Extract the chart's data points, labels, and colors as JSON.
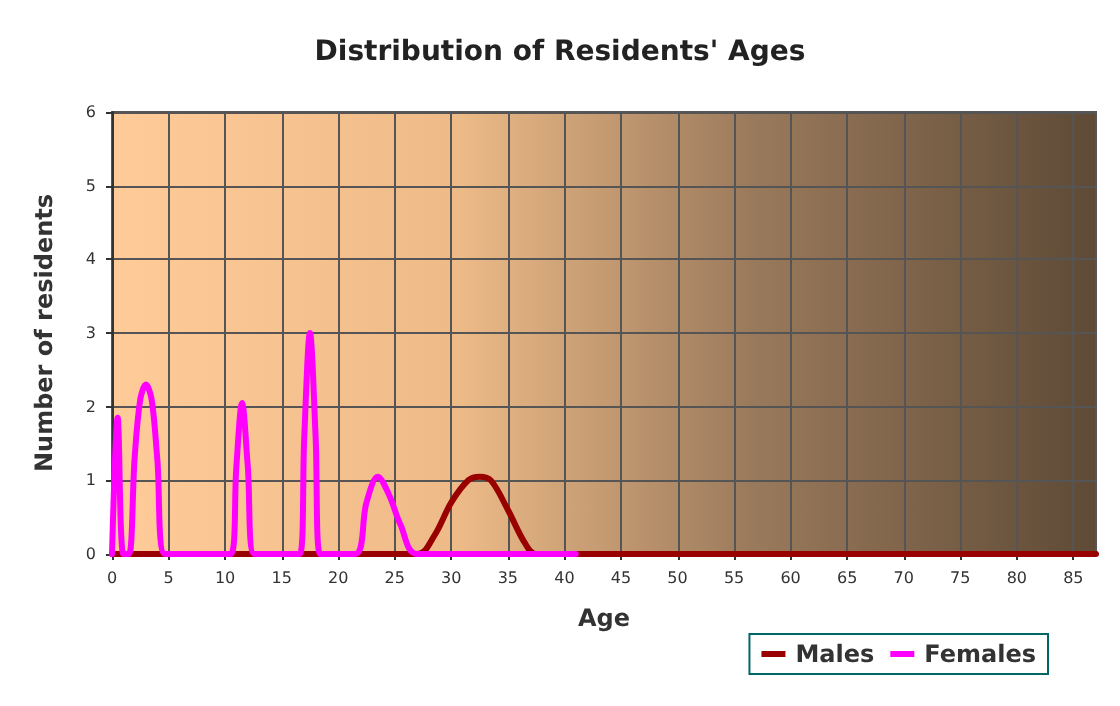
{
  "chart_data": {
    "type": "line",
    "title": "Distribution of Residents' Ages",
    "xlabel": "Age",
    "ylabel": "Number of residents",
    "xlim": [
      0,
      87
    ],
    "xticks": [
      0,
      5,
      10,
      15,
      20,
      25,
      30,
      35,
      40,
      45,
      50,
      55,
      60,
      65,
      70,
      75,
      80,
      85
    ],
    "ylim": [
      0,
      6
    ],
    "yticks": [
      0,
      1,
      2,
      3,
      4,
      5,
      6
    ],
    "grid": true,
    "legend": "bottom right",
    "marker": "none",
    "line_style": "solid",
    "series": [
      {
        "name": "Males",
        "color": "#990000",
        "x": [
          0,
          27,
          28.5,
          30,
          31.5,
          32.5,
          33.5,
          35,
          36.5,
          37.5,
          87
        ],
        "values": [
          0,
          0,
          0.25,
          0.7,
          1,
          1.05,
          1,
          0.6,
          0.15,
          0,
          0
        ]
      },
      {
        "name": "Females",
        "color": "#ff00ff",
        "x": [
          0,
          0.5,
          1,
          1.5,
          2,
          2.5,
          3,
          3.5,
          4,
          4.7,
          10.5,
          11,
          11.5,
          12,
          12.6,
          16.6,
          17,
          17.5,
          18,
          18.4,
          21.5,
          22.5,
          23.5,
          24.5,
          25.5,
          27,
          41
        ],
        "values": [
          0,
          1.85,
          0,
          0,
          1.3,
          2.1,
          2.3,
          2.1,
          1.3,
          0,
          0,
          1.2,
          2.05,
          1.2,
          0,
          0,
          1.6,
          3,
          1.6,
          0,
          0,
          0.7,
          1.05,
          0.8,
          0.4,
          0,
          0
        ]
      }
    ]
  }
}
